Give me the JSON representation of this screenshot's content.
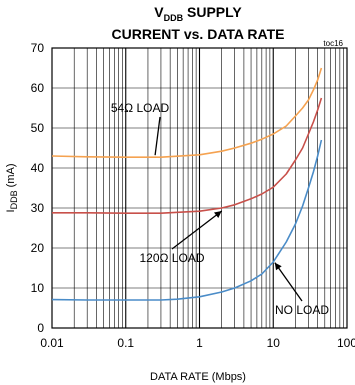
{
  "chart_data": {
    "type": "line",
    "title_main": "V",
    "title_sub": "DDB",
    "title_rest": " SUPPLY",
    "title_line2": "CURRENT vs. DATA RATE",
    "tag": "toc16",
    "xlabel": "DATA RATE (Mbps)",
    "ylabel_main": "I",
    "ylabel_sub": "DDB",
    "ylabel_rest": " (mA)",
    "x_scale": "log",
    "xlim": [
      0.01,
      100
    ],
    "ylim": [
      0,
      70
    ],
    "x_ticks": [
      "0.01",
      "0.1",
      "1",
      "10",
      "100"
    ],
    "y_ticks": [
      "0",
      "10",
      "20",
      "30",
      "40",
      "50",
      "60",
      "70"
    ],
    "grid": true,
    "series": [
      {
        "name": "54Ω LOAD",
        "color": "#f5a250",
        "x": [
          0.01,
          0.03,
          0.1,
          0.3,
          1,
          2,
          3,
          5,
          7,
          10,
          15,
          20,
          25,
          30,
          35,
          40,
          45
        ],
        "y": [
          43.0,
          42.8,
          42.7,
          42.7,
          43.3,
          44.2,
          45.0,
          46.2,
          47.2,
          48.5,
          50.5,
          53.0,
          55.0,
          57.0,
          59.5,
          62.0,
          65.0
        ]
      },
      {
        "name": "120Ω LOAD",
        "color": "#c8504a",
        "x": [
          0.01,
          0.03,
          0.1,
          0.3,
          1,
          2,
          3,
          5,
          7,
          10,
          15,
          20,
          25,
          30,
          35,
          40,
          45
        ],
        "y": [
          28.8,
          28.8,
          28.7,
          28.7,
          29.2,
          30.0,
          30.8,
          32.3,
          33.5,
          35.2,
          38.5,
          42.0,
          45.0,
          48.5,
          51.5,
          54.5,
          57.5
        ]
      },
      {
        "name": "NO LOAD",
        "color": "#4a8cc8",
        "x": [
          0.01,
          0.03,
          0.1,
          0.3,
          0.5,
          1,
          2,
          3,
          5,
          7,
          10,
          15,
          20,
          25,
          30,
          35,
          40,
          45
        ],
        "y": [
          7.1,
          7.0,
          7.0,
          7.0,
          7.2,
          7.8,
          9.0,
          10.0,
          11.8,
          13.5,
          16.5,
          21.5,
          26.0,
          30.5,
          35.0,
          39.0,
          43.0,
          47.0
        ]
      }
    ],
    "annotations": [
      {
        "text": "54Ω LOAD",
        "series": 0
      },
      {
        "text": "120Ω LOAD",
        "series": 1
      },
      {
        "text": "NO LOAD",
        "series": 2
      }
    ]
  }
}
